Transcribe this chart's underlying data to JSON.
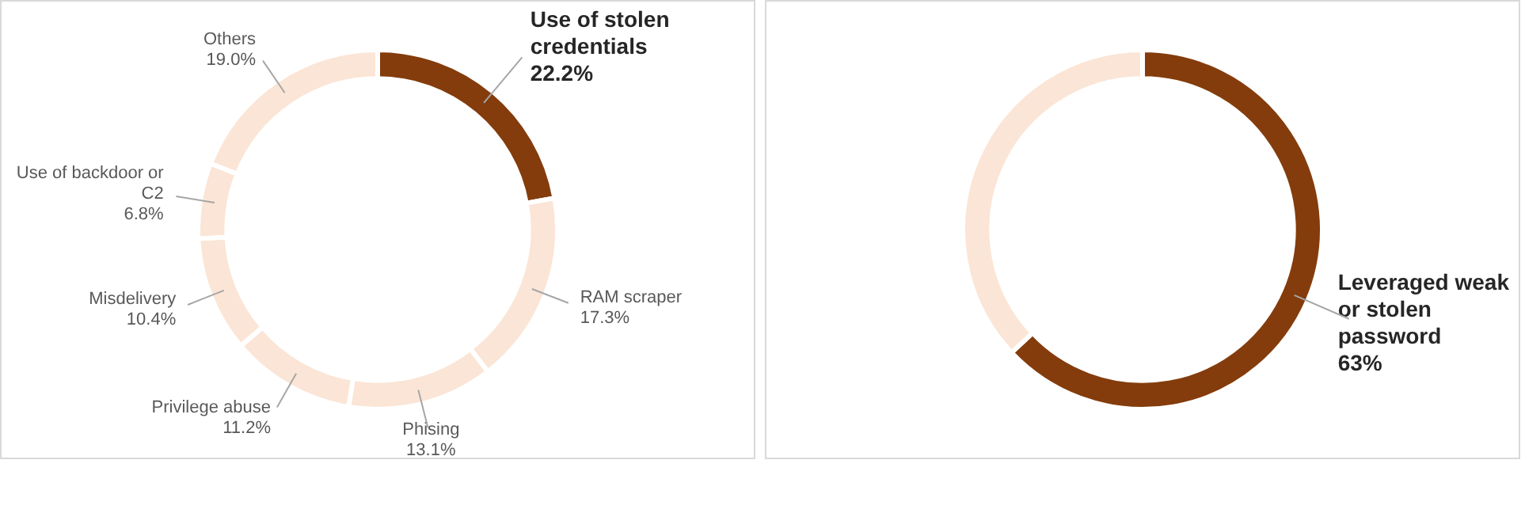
{
  "chart_data": [
    {
      "type": "donut",
      "categories": [
        "Use of stolen credentials",
        "RAM scraper",
        "Phising",
        "Privilege abuse",
        "Misdelivery",
        "Use of backdoor or C2",
        "Others"
      ],
      "values": [
        22.2,
        17.3,
        13.1,
        11.2,
        10.4,
        6.8,
        19.0
      ],
      "colors": [
        "#843c0c",
        "#fbe5d6",
        "#fbe5d6",
        "#fbe5d6",
        "#fbe5d6",
        "#fbe5d6",
        "#fbe5d6"
      ],
      "value_labels": [
        "22.2%",
        "17.3%",
        "13.1%",
        "11.2%",
        "10.4%",
        "6.8%",
        "19.0%"
      ]
    },
    {
      "type": "donut",
      "categories": [
        "Leveraged weak or stolen password",
        null
      ],
      "values": [
        63,
        37
      ],
      "colors": [
        "#843c0c",
        "#fbe5d6"
      ],
      "value_labels": [
        "63%",
        null
      ]
    }
  ]
}
